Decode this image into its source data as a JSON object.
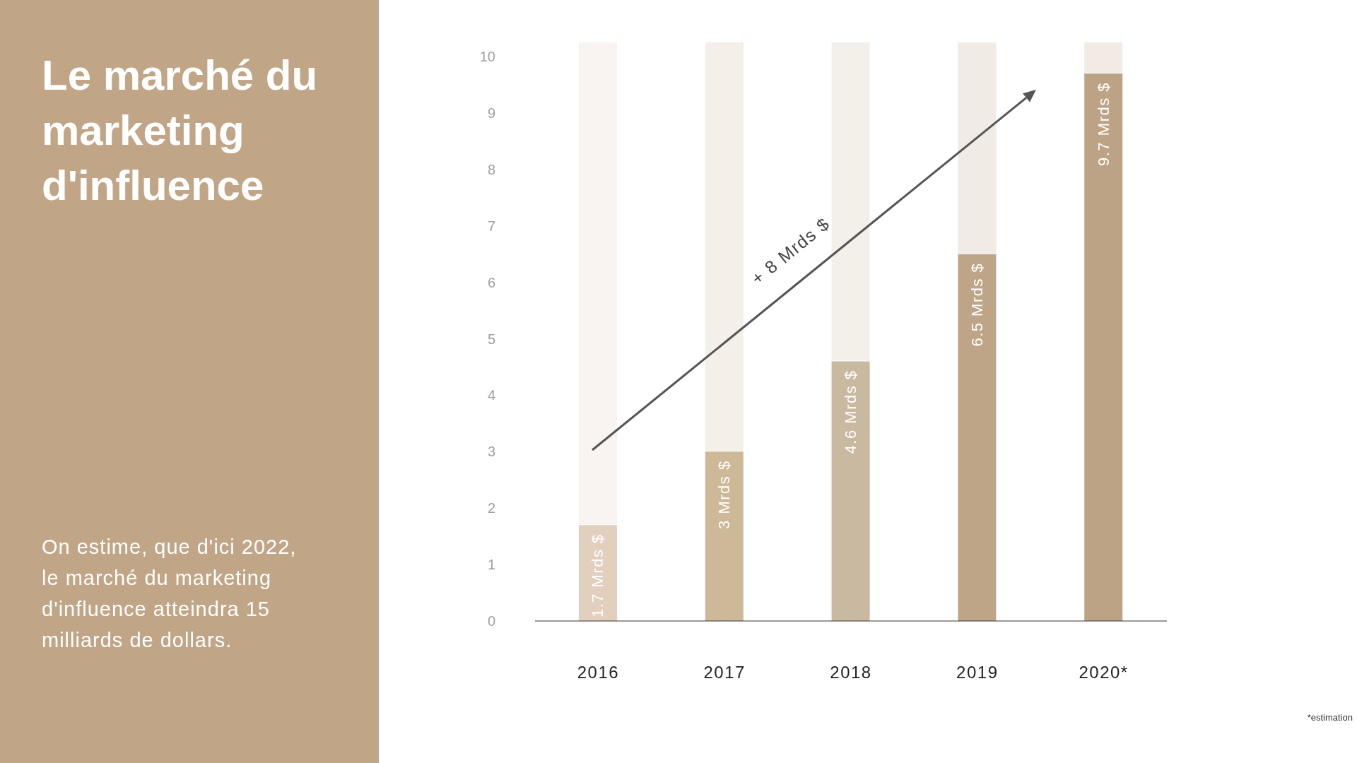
{
  "chart_data": {
    "type": "bar",
    "title": "Le marché du marketing d'influence",
    "subtitle": "On estime, que d'ici 2022, le marché du marketing d'influence atteindra 15 milliards de dollars.",
    "categories": [
      "2016",
      "2017",
      "2018",
      "2019",
      "2020*"
    ],
    "values": [
      1.7,
      3,
      4.6,
      6.5,
      9.7
    ],
    "colors": [
      "#e3cfbd",
      "#cdb898",
      "#c9b9a0",
      "#bfa588",
      "#bda386"
    ],
    "value_labels": [
      "1.7 Mrds $",
      "3 Mrds $",
      "4.6 Mrds $",
      "6.5 Mrds $",
      "9.7 Mrds $"
    ],
    "ylim": [
      0,
      10.25
    ],
    "yticks": [
      0,
      1,
      2,
      3,
      4,
      5,
      6,
      7,
      8,
      9,
      10
    ],
    "grid": false,
    "legend": false,
    "annotations": [
      "+ 8 Mrds $",
      "*estimation"
    ]
  }
}
